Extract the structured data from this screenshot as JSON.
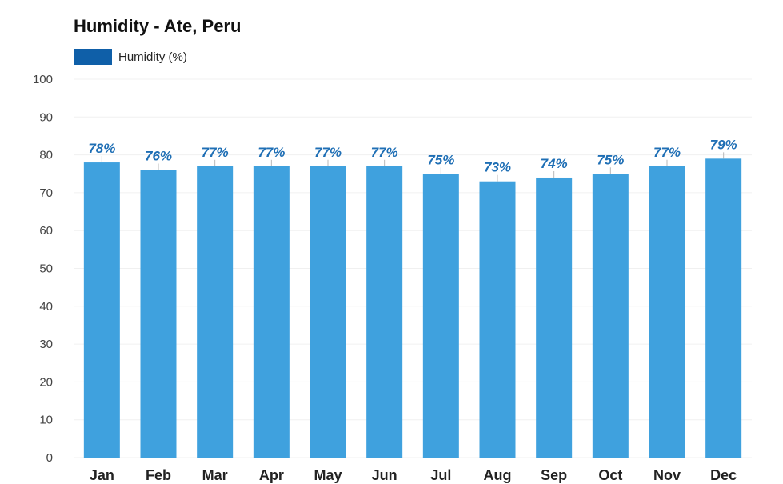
{
  "chart_data": {
    "type": "bar",
    "title": "Humidity - Ate, Peru",
    "xlabel": "",
    "ylabel": "",
    "ylim": [
      0,
      100
    ],
    "yticks": [
      "0",
      "10",
      "20",
      "30",
      "40",
      "50",
      "60",
      "70",
      "80",
      "90",
      "100"
    ],
    "grid": true,
    "legend_position": "top-left",
    "categories": [
      "Jan",
      "Feb",
      "Mar",
      "Apr",
      "May",
      "Jun",
      "Jul",
      "Aug",
      "Sep",
      "Oct",
      "Nov",
      "Dec"
    ],
    "series": [
      {
        "name": "Humidity (%)",
        "values": [
          78,
          76,
          77,
          77,
          77,
          77,
          75,
          73,
          74,
          75,
          77,
          79
        ],
        "labels": [
          "78%",
          "76%",
          "77%",
          "77%",
          "77%",
          "77%",
          "75%",
          "73%",
          "74%",
          "75%",
          "77%",
          "79%"
        ]
      }
    ],
    "colors": {
      "bar": "#3fa1de",
      "legend_swatch": "#0f5fa8",
      "data_label": "#1f6fb5",
      "grid": "#f0f0f0"
    }
  }
}
